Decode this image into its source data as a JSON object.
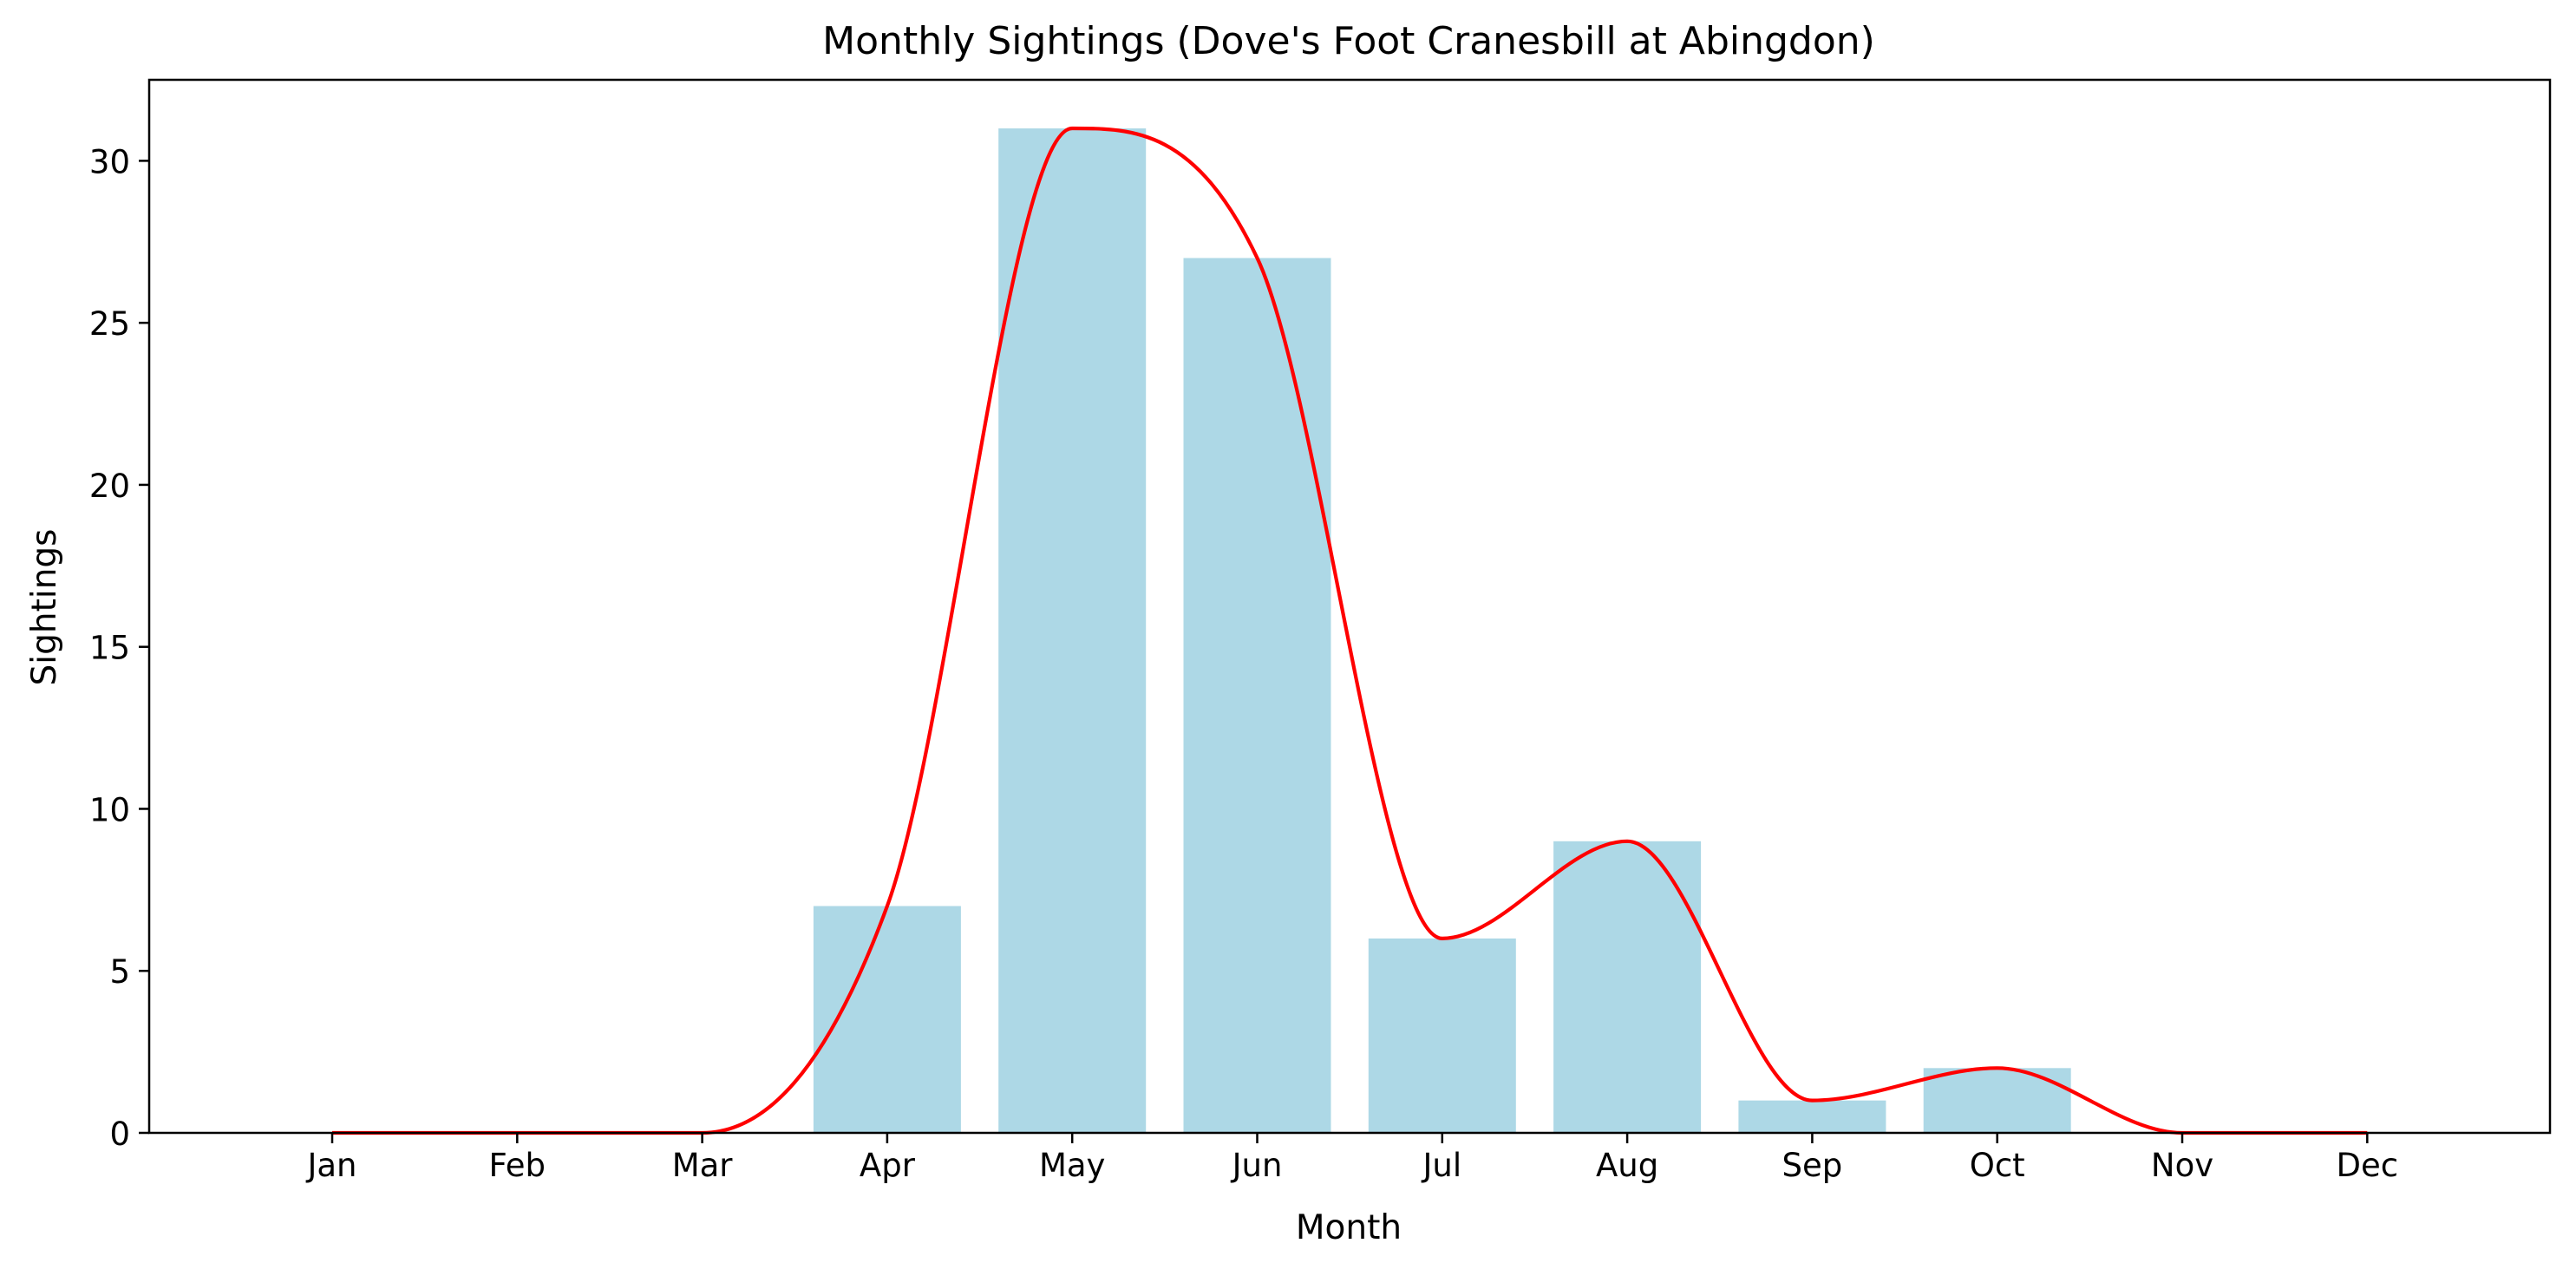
{
  "chart_data": {
    "type": "bar",
    "title": "Monthly Sightings (Dove's Foot Cranesbill at Abingdon)",
    "xlabel": "Month",
    "ylabel": "Sightings",
    "categories": [
      "Jan",
      "Feb",
      "Mar",
      "Apr",
      "May",
      "Jun",
      "Jul",
      "Aug",
      "Sep",
      "Oct",
      "Nov",
      "Dec"
    ],
    "values": [
      0,
      0,
      0,
      7,
      31,
      27,
      6,
      9,
      1,
      2,
      0,
      0
    ],
    "trend_line": {
      "style": "smooth",
      "values": [
        0,
        0,
        0,
        7,
        31,
        27,
        6,
        9,
        1,
        2,
        0,
        0
      ]
    },
    "ylim": [
      0,
      32.5
    ],
    "yticks": [
      "0",
      "5",
      "10",
      "15",
      "20",
      "25",
      "30"
    ],
    "grid": false,
    "colors": {
      "bars": "#add8e6",
      "line": "#ff0000",
      "axes": "#000000"
    }
  }
}
